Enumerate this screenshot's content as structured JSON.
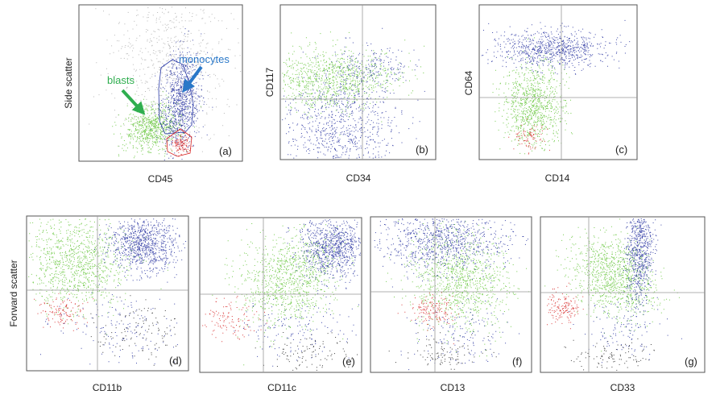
{
  "chart_data": [
    {
      "type": "scatter",
      "panel_label": "(a)",
      "xlabel": "CD45",
      "ylabel": "Side scatter",
      "grid": false,
      "annotations": [
        "monocytes",
        "blasts"
      ],
      "series": [
        {
          "name": "monocytes",
          "color": "#1f2a9c"
        },
        {
          "name": "blasts",
          "color": "#5dc22f"
        },
        {
          "color": "#d62020"
        },
        {
          "color": "#aaaaaa"
        }
      ]
    },
    {
      "type": "scatter",
      "panel_label": "(b)",
      "xlabel": "CD34",
      "ylabel": "CD117",
      "grid": true,
      "series": [
        {
          "color": "#5dc22f"
        },
        {
          "color": "#1f2a9c"
        }
      ]
    },
    {
      "type": "scatter",
      "panel_label": "(c)",
      "xlabel": "CD14",
      "ylabel": "CD64",
      "grid": true,
      "series": [
        {
          "color": "#1f2a9c"
        },
        {
          "color": "#5dc22f"
        },
        {
          "color": "#d62020"
        }
      ]
    },
    {
      "type": "scatter",
      "panel_label": "(d)",
      "xlabel": "CD11b",
      "ylabel": "Forward scatter",
      "grid": true,
      "series": [
        {
          "color": "#5dc22f"
        },
        {
          "color": "#1f2a9c"
        },
        {
          "color": "#d62020"
        },
        {
          "color": "#222222"
        }
      ]
    },
    {
      "type": "scatter",
      "panel_label": "(e)",
      "xlabel": "CD11c",
      "ylabel": "",
      "grid": true,
      "series": [
        {
          "color": "#5dc22f"
        },
        {
          "color": "#1f2a9c"
        },
        {
          "color": "#d62020"
        },
        {
          "color": "#222222"
        }
      ]
    },
    {
      "type": "scatter",
      "panel_label": "(f)",
      "xlabel": "CD13",
      "ylabel": "",
      "grid": true,
      "series": [
        {
          "color": "#5dc22f"
        },
        {
          "color": "#1f2a9c"
        },
        {
          "color": "#d62020"
        },
        {
          "color": "#222222"
        }
      ]
    },
    {
      "type": "scatter",
      "panel_label": "(g)",
      "xlabel": "CD33",
      "ylabel": "",
      "grid": true,
      "series": [
        {
          "color": "#5dc22f"
        },
        {
          "color": "#1f2a9c"
        },
        {
          "color": "#d62020"
        },
        {
          "color": "#222222"
        }
      ]
    }
  ]
}
